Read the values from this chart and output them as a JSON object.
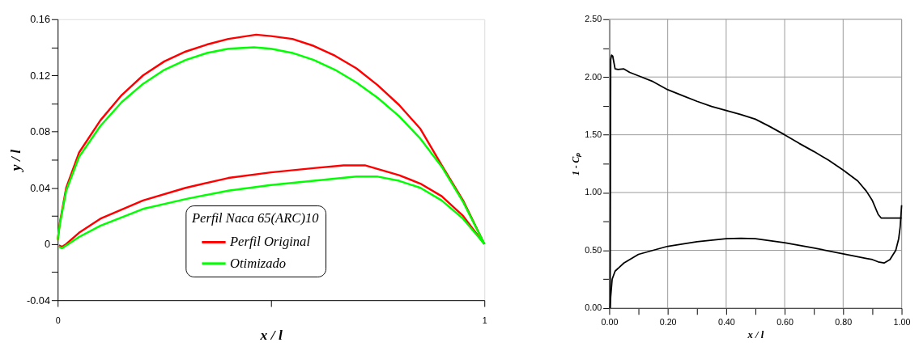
{
  "chart_data": [
    {
      "type": "line",
      "xlabel": "x / l",
      "ylabel": "y / l",
      "legend_title": "Perfil Naca 65(ARC)10",
      "legend": "bottom",
      "grid": false,
      "marker": "none",
      "line_style": "solid",
      "xlim": [
        0,
        1
      ],
      "xticks": [
        0,
        {
          "value": 0.5,
          "label": null
        },
        1
      ],
      "ylim": [
        -0.04,
        0.16
      ],
      "yticks": [
        -0.04,
        {
          "value": -0.02,
          "label": null
        },
        0,
        {
          "value": 0.02,
          "label": null
        },
        0.04,
        {
          "value": 0.06,
          "label": null
        },
        0.08,
        {
          "value": 0.1,
          "label": null
        },
        0.12,
        {
          "value": 0.14,
          "label": null
        },
        0.16
      ],
      "series": [
        {
          "name": "Perfil Original",
          "color": "#ff0000",
          "x": [
            0,
            0.005,
            0.02,
            0.05,
            0.1,
            0.15,
            0.2,
            0.25,
            0.3,
            0.35,
            0.4,
            0.465,
            0.5,
            0.55,
            0.6,
            0.65,
            0.7,
            0.75,
            0.8,
            0.85,
            0.9,
            0.95,
            1
          ],
          "values": [
            0.003,
            0.015,
            0.04,
            0.065,
            0.088,
            0.106,
            0.12,
            0.13,
            0.137,
            0.142,
            0.146,
            0.149,
            0.148,
            0.146,
            0.141,
            0.134,
            0.125,
            0.113,
            0.099,
            0.082,
            0.056,
            0.031,
            0
          ]
        },
        {
          "color": "#ff0000",
          "x": [
            0.003,
            0.01,
            0.02,
            0.05,
            0.1,
            0.2,
            0.3,
            0.4,
            0.5,
            0.6,
            0.67,
            0.72,
            0.8,
            0.85,
            0.9,
            0.95,
            1
          ],
          "values": [
            -0.001,
            -0.002,
            0,
            0.008,
            0.018,
            0.031,
            0.04,
            0.047,
            0.051,
            0.054,
            0.056,
            0.056,
            0.049,
            0.043,
            0.034,
            0.02,
            0
          ]
        },
        {
          "name": "Otimizado",
          "color": "#00ff00",
          "x": [
            0,
            0.005,
            0.02,
            0.05,
            0.1,
            0.15,
            0.2,
            0.25,
            0.3,
            0.35,
            0.4,
            0.46,
            0.5,
            0.55,
            0.6,
            0.65,
            0.7,
            0.75,
            0.8,
            0.85,
            0.9,
            0.95,
            1
          ],
          "values": [
            0.003,
            0.014,
            0.038,
            0.062,
            0.084,
            0.101,
            0.114,
            0.124,
            0.131,
            0.136,
            0.139,
            0.14,
            0.139,
            0.136,
            0.131,
            0.124,
            0.115,
            0.104,
            0.091,
            0.075,
            0.055,
            0.03,
            0
          ]
        },
        {
          "color": "#00ff00",
          "x": [
            0.003,
            0.01,
            0.02,
            0.05,
            0.1,
            0.2,
            0.3,
            0.4,
            0.5,
            0.6,
            0.7,
            0.75,
            0.8,
            0.85,
            0.9,
            0.95,
            1
          ],
          "values": [
            -0.002,
            -0.003,
            -0.001,
            0.005,
            0.013,
            0.025,
            0.032,
            0.038,
            0.042,
            0.045,
            0.048,
            0.048,
            0.045,
            0.04,
            0.031,
            0.018,
            0
          ]
        }
      ]
    },
    {
      "type": "line",
      "xlabel": "x / l",
      "ylabel": "1 - Cₚ",
      "grid": true,
      "marker": "none",
      "line_style": "solid",
      "xlim": [
        0,
        1
      ],
      "xticks": [
        {
          "value": 0,
          "label": "0.00"
        },
        {
          "value": 0.1,
          "label": null
        },
        {
          "value": 0.2,
          "label": "0.20"
        },
        {
          "value": 0.3,
          "label": null
        },
        {
          "value": 0.4,
          "label": "0.40"
        },
        {
          "value": 0.5,
          "label": null
        },
        {
          "value": 0.6,
          "label": "0.60"
        },
        {
          "value": 0.7,
          "label": null
        },
        {
          "value": 0.8,
          "label": "0.80"
        },
        {
          "value": 0.9,
          "label": null
        },
        {
          "value": 1,
          "label": "1.00"
        }
      ],
      "ylim": [
        0,
        2.5
      ],
      "yticks": [
        {
          "value": 0,
          "label": "0.00"
        },
        {
          "value": 0.25,
          "label": null
        },
        {
          "value": 0.5,
          "label": "0.50"
        },
        {
          "value": 0.75,
          "label": null
        },
        {
          "value": 1,
          "label": "1.00"
        },
        {
          "value": 1.25,
          "label": null
        },
        {
          "value": 1.5,
          "label": "1.50"
        },
        {
          "value": 1.75,
          "label": null
        },
        {
          "value": 2,
          "label": "2.00"
        },
        {
          "value": 2.25,
          "label": null
        },
        {
          "value": 2.5,
          "label": "2.50"
        }
      ],
      "series": [
        {
          "color": "#000000",
          "x": [
            0.003,
            0.004,
            0.005,
            0.008,
            0.012,
            0.02,
            0.03,
            0.05,
            0.07,
            0.1,
            0.15,
            0.2,
            0.25,
            0.3,
            0.35,
            0.4,
            0.45,
            0.5,
            0.55,
            0.6,
            0.65,
            0.7,
            0.75,
            0.8,
            0.85,
            0.88,
            0.9,
            0.92,
            0.93,
            1
          ],
          "values": [
            0,
            1.0,
            2.15,
            2.19,
            2.18,
            2.07,
            2.065,
            2.07,
            2.04,
            2.01,
            1.96,
            1.89,
            1.84,
            1.79,
            1.745,
            1.71,
            1.675,
            1.635,
            1.57,
            1.5,
            1.425,
            1.355,
            1.28,
            1.195,
            1.1,
            1.01,
            0.93,
            0.81,
            0.78,
            0.78
          ]
        },
        {
          "color": "#000000",
          "x": [
            0.003,
            0.005,
            0.01,
            0.02,
            0.05,
            0.1,
            0.2,
            0.3,
            0.4,
            0.45,
            0.5,
            0.6,
            0.7,
            0.8,
            0.88,
            0.9,
            0.92,
            0.94,
            0.96,
            0.98,
            0.99,
            0.995,
            1
          ],
          "values": [
            0,
            0.1,
            0.25,
            0.32,
            0.39,
            0.465,
            0.535,
            0.575,
            0.6,
            0.605,
            0.6,
            0.565,
            0.52,
            0.47,
            0.43,
            0.42,
            0.4,
            0.39,
            0.42,
            0.5,
            0.6,
            0.7,
            0.89
          ]
        }
      ]
    }
  ]
}
